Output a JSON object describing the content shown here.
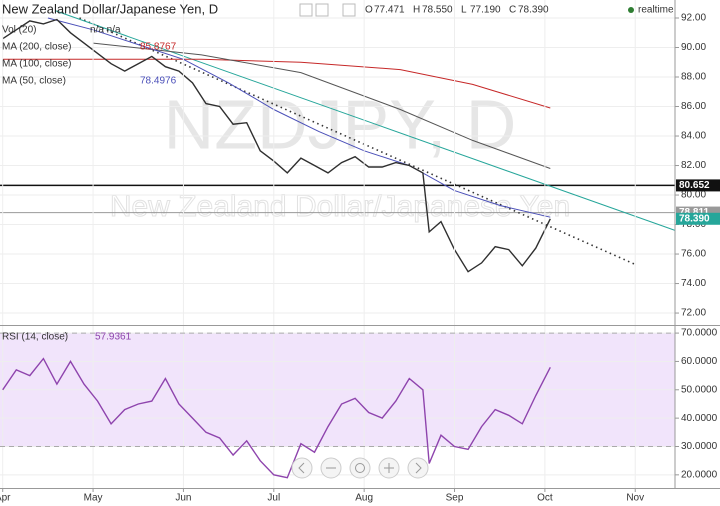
{
  "chart_data": [
    {
      "type": "line",
      "title": "New Zealand Dollar/Japanese Yen, D",
      "ohlc": [
        {
          "name": "O",
          "value": 77.471
        },
        {
          "name": "H",
          "value": 78.55,
          "label": "78.550"
        },
        {
          "name": "L",
          "value": 77.19,
          "label": "77.190"
        },
        {
          "name": "C",
          "value": 78.39,
          "label": "78.390"
        }
      ],
      "status": "realtime",
      "watermark": "NZDJPY, D",
      "watermark_subtitle": "New Zealand Dollar/Japanese Yen",
      "volume_legend": {
        "name": "Vol (20)",
        "value": "n/a n/a"
      },
      "x": [
        0.0,
        0.15,
        0.3,
        0.45,
        0.6,
        0.75,
        0.9,
        1.05,
        1.2,
        1.35,
        1.5,
        1.65,
        1.8,
        1.95,
        2.1,
        2.25,
        2.4,
        2.55,
        2.7,
        2.85,
        3.0,
        3.15,
        3.3,
        3.45,
        3.6,
        3.75,
        3.9,
        4.05,
        4.2,
        4.35,
        4.5,
        4.65,
        4.72,
        4.85,
        5.0,
        5.15,
        5.3,
        5.45,
        5.6,
        5.75,
        5.9,
        6.06
      ],
      "values": [
        90.6,
        91.2,
        91.8,
        91.6,
        91.9,
        91.0,
        90.3,
        89.6,
        88.9,
        88.4,
        88.9,
        89.4,
        88.7,
        88.4,
        87.6,
        86.2,
        86.0,
        84.8,
        84.9,
        83.0,
        82.3,
        81.5,
        82.5,
        82.0,
        81.5,
        82.2,
        82.6,
        81.9,
        81.9,
        82.2,
        82.0,
        81.5,
        77.5,
        78.2,
        76.3,
        74.8,
        75.4,
        76.5,
        76.3,
        75.2,
        76.4,
        78.39
      ],
      "color": "#2f2f2f",
      "series": [
        {
          "name": "MA (200, close)",
          "color": "#c62828",
          "last_value": 85.8767,
          "x": [
            0.0,
            2.2,
            3.3,
            4.4,
            5.2,
            6.06
          ],
          "values": [
            89.2,
            89.2,
            89.0,
            88.5,
            87.5,
            85.9
          ]
        },
        {
          "name": "MA (100, close)",
          "color": "#555555",
          "x": [
            1.0,
            2.2,
            3.3,
            4.4,
            5.2,
            6.06
          ],
          "values": [
            90.3,
            89.5,
            88.3,
            85.8,
            83.7,
            81.8
          ]
        },
        {
          "name": "MA (50, close)",
          "color": "#4a4fb8",
          "last_value": 78.4976,
          "x": [
            0.5,
            1.0,
            1.5,
            2.0,
            2.5,
            3.0,
            3.5,
            4.0,
            4.5,
            5.0,
            5.5,
            6.06
          ],
          "values": [
            92.0,
            91.2,
            90.2,
            89.2,
            87.6,
            85.8,
            84.3,
            83.0,
            82.0,
            80.3,
            79.3,
            78.5
          ]
        }
      ],
      "trendlines": [
        {
          "style": "dotted",
          "color": "#333333",
          "x": [
            0.85,
            7.0
          ],
          "values": [
            92.0,
            75.3
          ]
        },
        {
          "style": "solid",
          "color": "#26a69a",
          "x": [
            0.58,
            7.44
          ],
          "values": [
            92.5,
            77.6
          ]
        }
      ],
      "levels": [
        {
          "value": 80.652,
          "color": "#111111"
        },
        {
          "value": 78.811,
          "color": "#999999"
        }
      ],
      "last_price": {
        "value": 78.39,
        "label": "78.390",
        "color": "#26a69a"
      },
      "xlim": [
        -0.03,
        7.44
      ],
      "ylim": [
        71.19,
        93.22
      ],
      "yticks": [
        {
          "value": 72,
          "label": "72.00"
        },
        {
          "value": 74,
          "label": "74.00"
        },
        {
          "value": 76,
          "label": "76.00"
        },
        {
          "value": 78,
          "label": "78.00"
        },
        {
          "value": 80,
          "label": "80.00"
        },
        {
          "value": 82,
          "label": "82.00"
        },
        {
          "value": 84,
          "label": "84.00"
        },
        {
          "value": 86,
          "label": "86.00"
        },
        {
          "value": 88,
          "label": "88.00"
        },
        {
          "value": 90,
          "label": "90.00"
        },
        {
          "value": 92,
          "label": "92.00"
        }
      ],
      "grid": true
    },
    {
      "type": "line",
      "title": "RSI (14, close)",
      "last_value": 57.9361,
      "color": "#8e44ad",
      "band": [
        30,
        70
      ],
      "band_color": "#f1e4fb",
      "x": [
        0.0,
        0.15,
        0.3,
        0.45,
        0.6,
        0.75,
        0.9,
        1.05,
        1.2,
        1.35,
        1.5,
        1.65,
        1.8,
        1.95,
        2.1,
        2.25,
        2.4,
        2.55,
        2.7,
        2.85,
        3.0,
        3.15,
        3.3,
        3.45,
        3.6,
        3.75,
        3.9,
        4.05,
        4.2,
        4.35,
        4.5,
        4.65,
        4.72,
        4.85,
        5.0,
        5.15,
        5.3,
        5.45,
        5.6,
        5.75,
        5.9,
        6.06
      ],
      "values": [
        50,
        57,
        55,
        61,
        52,
        60,
        52,
        46,
        38,
        43,
        45,
        46,
        54,
        45,
        40,
        35,
        33,
        27,
        32,
        25,
        20,
        19,
        31,
        28,
        37,
        45,
        47,
        42,
        40,
        46,
        54,
        50,
        24,
        34,
        30,
        29,
        37,
        43,
        41,
        38,
        48,
        57.9361
      ],
      "xlim": [
        -0.03,
        7.44
      ],
      "xticks": [
        {
          "value": 0,
          "label": "Apr"
        },
        {
          "value": 1,
          "label": "May"
        },
        {
          "value": 2,
          "label": "Jun"
        },
        {
          "value": 3,
          "label": "Jul"
        },
        {
          "value": 4,
          "label": "Aug"
        },
        {
          "value": 5,
          "label": "Sep"
        },
        {
          "value": 6,
          "label": "Oct"
        },
        {
          "value": 7,
          "label": "Nov"
        }
      ],
      "ylim": [
        15.36,
        72.5
      ],
      "yticks": [
        {
          "value": 20,
          "label": "20.0000"
        },
        {
          "value": 30,
          "label": "30.0000"
        },
        {
          "value": 40,
          "label": "40.0000"
        },
        {
          "value": 50,
          "label": "50.0000"
        },
        {
          "value": 60,
          "label": "60.0000"
        },
        {
          "value": 70,
          "label": "70.0000"
        }
      ],
      "grid": true
    }
  ]
}
